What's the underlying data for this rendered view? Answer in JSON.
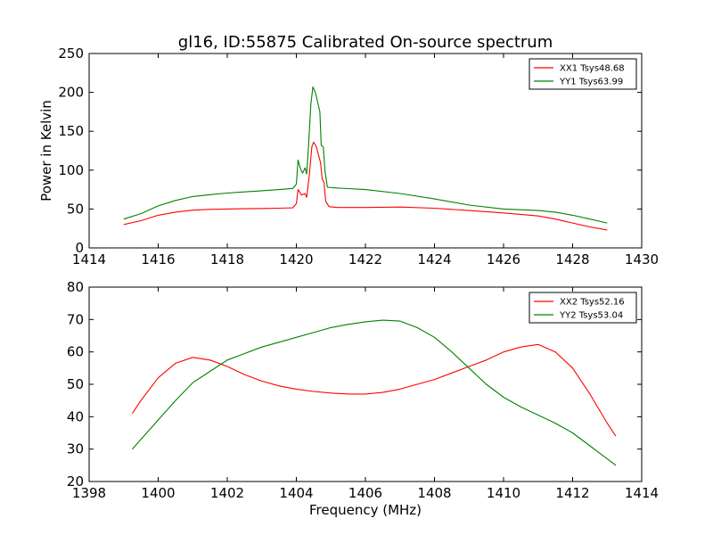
{
  "chart_data": [
    {
      "type": "line",
      "title": "gl16, ID:55875 Calibrated On-source spectrum",
      "xlabel": "",
      "ylabel": "Power in Kelvin",
      "xlim": [
        1414,
        1430
      ],
      "ylim": [
        0,
        250
      ],
      "xticks": [
        1414,
        1416,
        1418,
        1420,
        1422,
        1424,
        1426,
        1428,
        1430
      ],
      "yticks": [
        0,
        50,
        100,
        150,
        200,
        250
      ],
      "grid": false,
      "legend_position": "top-right",
      "series": [
        {
          "name": "XX1 Tsys48.68",
          "color": "#ff0000",
          "points": [
            [
              1415.0,
              30
            ],
            [
              1415.5,
              35
            ],
            [
              1416.0,
              42
            ],
            [
              1416.5,
              46
            ],
            [
              1417.0,
              48.5
            ],
            [
              1417.5,
              49.5
            ],
            [
              1418.0,
              50
            ],
            [
              1418.5,
              50.3
            ],
            [
              1419.0,
              50.7
            ],
            [
              1419.5,
              51
            ],
            [
              1419.9,
              51.5
            ],
            [
              1420.0,
              57
            ],
            [
              1420.05,
              75
            ],
            [
              1420.15,
              68
            ],
            [
              1420.25,
              70
            ],
            [
              1420.3,
              65
            ],
            [
              1420.38,
              95
            ],
            [
              1420.45,
              130
            ],
            [
              1420.5,
              136
            ],
            [
              1420.58,
              130
            ],
            [
              1420.65,
              118
            ],
            [
              1420.7,
              110
            ],
            [
              1420.75,
              88
            ],
            [
              1420.8,
              85
            ],
            [
              1420.85,
              60
            ],
            [
              1420.95,
              53
            ],
            [
              1421.2,
              52
            ],
            [
              1422.0,
              52
            ],
            [
              1423.0,
              52.5
            ],
            [
              1424.0,
              51
            ],
            [
              1425.0,
              48
            ],
            [
              1426.0,
              45
            ],
            [
              1427.0,
              41
            ],
            [
              1427.5,
              37
            ],
            [
              1428.0,
              32
            ],
            [
              1428.5,
              27
            ],
            [
              1429.0,
              23
            ]
          ]
        },
        {
          "name": "YY1 Tsys63.99",
          "color": "#008000",
          "points": [
            [
              1415.0,
              37
            ],
            [
              1415.5,
              44
            ],
            [
              1416.0,
              54
            ],
            [
              1416.5,
              61
            ],
            [
              1417.0,
              66
            ],
            [
              1417.5,
              68.5
            ],
            [
              1418.0,
              70.5
            ],
            [
              1418.5,
              72
            ],
            [
              1419.0,
              73.5
            ],
            [
              1419.5,
              75
            ],
            [
              1419.9,
              76.5
            ],
            [
              1420.0,
              82
            ],
            [
              1420.05,
              113
            ],
            [
              1420.12,
              102
            ],
            [
              1420.18,
              96
            ],
            [
              1420.25,
              103
            ],
            [
              1420.3,
              95
            ],
            [
              1420.35,
              130
            ],
            [
              1420.42,
              185
            ],
            [
              1420.48,
              207
            ],
            [
              1420.55,
              200
            ],
            [
              1420.62,
              187
            ],
            [
              1420.68,
              175
            ],
            [
              1420.72,
              132
            ],
            [
              1420.78,
              130
            ],
            [
              1420.83,
              98
            ],
            [
              1420.9,
              78
            ],
            [
              1421.2,
              77
            ],
            [
              1422.0,
              75
            ],
            [
              1423.0,
              70
            ],
            [
              1424.0,
              63
            ],
            [
              1425.0,
              55
            ],
            [
              1426.0,
              50
            ],
            [
              1427.0,
              48
            ],
            [
              1427.5,
              46
            ],
            [
              1428.0,
              42
            ],
            [
              1428.5,
              37
            ],
            [
              1429.0,
              32
            ]
          ]
        }
      ]
    },
    {
      "type": "line",
      "title": "",
      "xlabel": "Frequency (MHz)",
      "ylabel": "",
      "xlim": [
        1398,
        1414
      ],
      "ylim": [
        20,
        80
      ],
      "xticks": [
        1398,
        1400,
        1402,
        1404,
        1406,
        1408,
        1410,
        1412,
        1414
      ],
      "yticks": [
        20,
        30,
        40,
        50,
        60,
        70,
        80
      ],
      "grid": false,
      "legend_position": "top-right",
      "series": [
        {
          "name": "XX2 Tsys52.16",
          "color": "#ff0000",
          "points": [
            [
              1399.25,
              41
            ],
            [
              1399.5,
              45
            ],
            [
              1400.0,
              52
            ],
            [
              1400.5,
              56.5
            ],
            [
              1401.0,
              58.3
            ],
            [
              1401.5,
              57.5
            ],
            [
              1402.0,
              55.5
            ],
            [
              1402.5,
              53
            ],
            [
              1403.0,
              51
            ],
            [
              1403.5,
              49.5
            ],
            [
              1404.0,
              48.5
            ],
            [
              1404.5,
              47.8
            ],
            [
              1405.0,
              47.3
            ],
            [
              1405.5,
              47
            ],
            [
              1406.0,
              47
            ],
            [
              1406.5,
              47.5
            ],
            [
              1407.0,
              48.5
            ],
            [
              1407.5,
              50
            ],
            [
              1408.0,
              51.5
            ],
            [
              1408.5,
              53.5
            ],
            [
              1409.0,
              55.5
            ],
            [
              1409.5,
              57.5
            ],
            [
              1410.0,
              60
            ],
            [
              1410.5,
              61.5
            ],
            [
              1411.0,
              62.3
            ],
            [
              1411.5,
              60
            ],
            [
              1412.0,
              55
            ],
            [
              1412.5,
              47
            ],
            [
              1413.0,
              38
            ],
            [
              1413.25,
              34
            ]
          ]
        },
        {
          "name": "YY2 Tsys53.04",
          "color": "#008000",
          "points": [
            [
              1399.25,
              30
            ],
            [
              1399.5,
              33
            ],
            [
              1400.0,
              39
            ],
            [
              1400.5,
              45
            ],
            [
              1401.0,
              50.5
            ],
            [
              1401.5,
              54
            ],
            [
              1402.0,
              57.5
            ],
            [
              1402.5,
              59.5
            ],
            [
              1403.0,
              61.5
            ],
            [
              1403.5,
              63
            ],
            [
              1404.0,
              64.5
            ],
            [
              1404.5,
              66
            ],
            [
              1405.0,
              67.5
            ],
            [
              1405.5,
              68.5
            ],
            [
              1406.0,
              69.3
            ],
            [
              1406.5,
              69.8
            ],
            [
              1407.0,
              69.5
            ],
            [
              1407.5,
              67.5
            ],
            [
              1408.0,
              64.5
            ],
            [
              1408.5,
              60
            ],
            [
              1409.0,
              55
            ],
            [
              1409.5,
              50
            ],
            [
              1410.0,
              46
            ],
            [
              1410.5,
              43
            ],
            [
              1411.0,
              40.5
            ],
            [
              1411.5,
              38
            ],
            [
              1412.0,
              35
            ],
            [
              1412.5,
              31
            ],
            [
              1413.0,
              27
            ],
            [
              1413.25,
              25
            ]
          ]
        }
      ]
    }
  ]
}
